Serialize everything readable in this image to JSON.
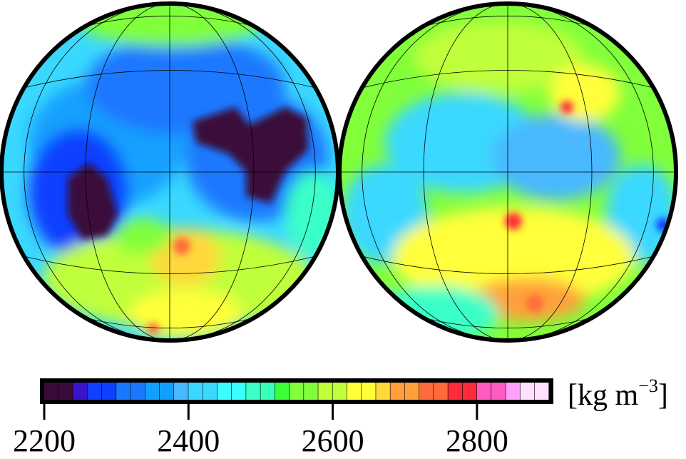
{
  "colorbar": {
    "min": 2200,
    "max": 2900,
    "step": 20,
    "colors": [
      "#3a0a3a",
      "#3a0a3a",
      "#3a14c8",
      "#1040ff",
      "#1040ff",
      "#1a78ff",
      "#1a78ff",
      "#12a0ff",
      "#12a0ff",
      "#4ab8ff",
      "#3ad8ff",
      "#3ad8ff",
      "#3affff",
      "#3affff",
      "#3affc8",
      "#3affb8",
      "#3aff3a",
      "#80ff3a",
      "#80ff3a",
      "#c0ff3a",
      "#c0ff3a",
      "#ffff3a",
      "#ffff3a",
      "#ffd83a",
      "#ffa03a",
      "#ffa03a",
      "#ff6a3a",
      "#ff6a3a",
      "#ff2a3a",
      "#ff2a3a",
      "#ff5ac0",
      "#ff5ac0",
      "#ffa0ff",
      "#ffe0ff",
      "#ffe0ff"
    ],
    "ticks": [
      {
        "value": 2200,
        "label": "2200"
      },
      {
        "value": 2400,
        "label": "2400"
      },
      {
        "value": 2600,
        "label": "2600"
      },
      {
        "value": 2800,
        "label": "2800"
      }
    ],
    "unit_prefix": "[kg m",
    "unit_exp": "−3",
    "unit_suffix": "]"
  },
  "maps": [
    {
      "name": "left-hemisphere"
    },
    {
      "name": "right-hemisphere"
    }
  ]
}
